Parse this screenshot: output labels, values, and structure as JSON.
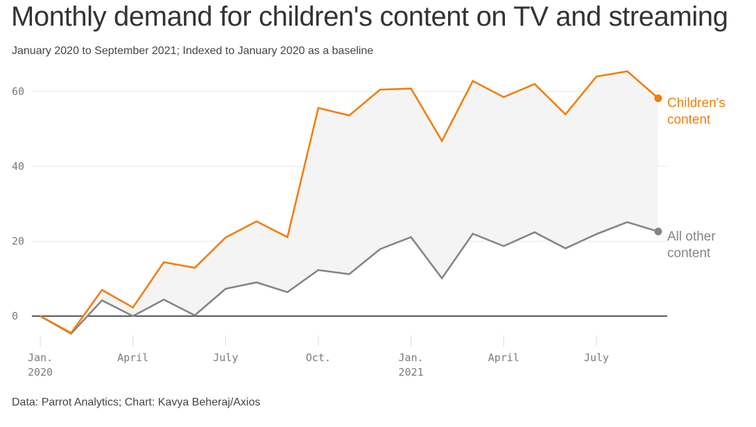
{
  "title": "Monthly demand for children's content on TV and streaming",
  "subtitle": "January 2020 to September 2021;  Indexed to January 2020 as a baseline",
  "source": "Data: Parrot Analytics; Chart: Kavya Beheraj/Axios",
  "colors": {
    "children": "#f07f0d",
    "other": "#858585",
    "fill": "#f4f4f4",
    "grid": "#e6e6e6",
    "baseline": "#222222"
  },
  "chart_data": {
    "type": "line",
    "title": "Monthly demand for children's content on TV and streaming",
    "ylim": [
      -5,
      65
    ],
    "yticks": [
      0,
      20,
      40,
      60
    ],
    "x": [
      "Jan 2020",
      "Feb 2020",
      "Mar 2020",
      "Apr 2020",
      "May 2020",
      "Jun 2020",
      "Jul 2020",
      "Aug 2020",
      "Sep 2020",
      "Oct 2020",
      "Nov 2020",
      "Dec 2020",
      "Jan 2021",
      "Feb 2021",
      "Mar 2021",
      "Apr 2021",
      "May 2021",
      "Jun 2021",
      "Jul 2021",
      "Aug 2021",
      "Sep 2021"
    ],
    "xticks": [
      {
        "index": 0,
        "lines": [
          "Jan.",
          "2020"
        ]
      },
      {
        "index": 3,
        "lines": [
          "April"
        ]
      },
      {
        "index": 6,
        "lines": [
          "July"
        ]
      },
      {
        "index": 9,
        "lines": [
          "Oct."
        ]
      },
      {
        "index": 12,
        "lines": [
          "Jan.",
          "2021"
        ]
      },
      {
        "index": 15,
        "lines": [
          "April"
        ]
      },
      {
        "index": 18,
        "lines": [
          "July"
        ]
      }
    ],
    "series": [
      {
        "name": "Children's content",
        "label_lines": [
          "Children's",
          "content"
        ],
        "color": "#f07f0d",
        "values": [
          0,
          -4.5,
          7,
          2.3,
          14.4,
          12.9,
          21,
          25.3,
          21.1,
          55.6,
          53.6,
          60.5,
          60.8,
          46.8,
          62.8,
          58.5,
          62,
          53.9,
          64,
          65.4,
          58.2
        ]
      },
      {
        "name": "All other content",
        "label_lines": [
          "All other",
          "content"
        ],
        "color": "#858585",
        "values": [
          0,
          -4.7,
          4.2,
          0,
          4.4,
          0.2,
          7.3,
          9,
          6.4,
          12.3,
          11.2,
          17.9,
          21.1,
          10.1,
          22,
          18.7,
          22.4,
          18.1,
          21.9,
          25.1,
          22.6
        ]
      }
    ]
  }
}
